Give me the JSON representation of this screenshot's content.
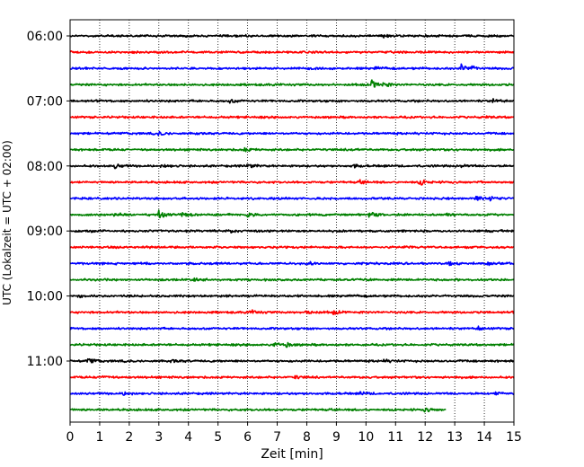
{
  "chart_data": {
    "type": "line",
    "subtype": "helicorder",
    "xlabel": "Zeit  [min]",
    "ylabel": "UTC (Lokalzeit = UTC + 02:00)",
    "xlim": [
      0,
      15
    ],
    "x_ticks": [
      "0",
      "1",
      "2",
      "3",
      "4",
      "5",
      "6",
      "7",
      "8",
      "9",
      "10",
      "11",
      "12",
      "13",
      "14",
      "15"
    ],
    "grid": "vertical dotted at each minute",
    "trace_interval_min": 15,
    "trace_colors": [
      "#000000",
      "#ff0000",
      "#0000ff",
      "#008000"
    ],
    "y_ticks": [
      {
        "label": "06:00",
        "trace": 0
      },
      {
        "label": "07:00",
        "trace": 4
      },
      {
        "label": "08:00",
        "trace": 8
      },
      {
        "label": "09:00",
        "trace": 12
      },
      {
        "label": "10:00",
        "trace": 16
      },
      {
        "label": "11:00",
        "trace": 20
      }
    ],
    "traces": [
      {
        "start": "06:00",
        "events": [
          {
            "t": 10.6,
            "amp": 0.3
          }
        ]
      },
      {
        "start": "06:15",
        "events": []
      },
      {
        "start": "06:30",
        "events": [
          {
            "t": 0.2,
            "amp": 0.3
          },
          {
            "t": 10.3,
            "amp": 0.3
          },
          {
            "t": 13.2,
            "amp": 1.0
          },
          {
            "t": 13.5,
            "amp": 0.5
          }
        ]
      },
      {
        "start": "06:45",
        "events": [
          {
            "t": 10.2,
            "amp": 1.0
          },
          {
            "t": 10.6,
            "amp": 0.4
          }
        ]
      },
      {
        "start": "07:00",
        "events": [
          {
            "t": 5.4,
            "amp": 0.4
          },
          {
            "t": 14.3,
            "amp": 0.4
          }
        ]
      },
      {
        "start": "07:15",
        "events": [
          {
            "t": 14.0,
            "amp": 0.2
          }
        ]
      },
      {
        "start": "07:30",
        "events": [
          {
            "t": 3.0,
            "amp": 0.4
          },
          {
            "t": 4.3,
            "amp": 0.25
          }
        ]
      },
      {
        "start": "07:45",
        "events": [
          {
            "t": 5.9,
            "amp": 0.35
          },
          {
            "t": 9.5,
            "amp": 0.2
          }
        ]
      },
      {
        "start": "08:00",
        "events": [
          {
            "t": 1.5,
            "amp": 0.5
          },
          {
            "t": 3.1,
            "amp": 0.45
          },
          {
            "t": 6.0,
            "amp": 0.5
          },
          {
            "t": 9.6,
            "amp": 0.3
          },
          {
            "t": 13.2,
            "amp": 0.3
          }
        ]
      },
      {
        "start": "08:15",
        "events": [
          {
            "t": 9.8,
            "amp": 0.35
          },
          {
            "t": 11.8,
            "amp": 0.7
          }
        ]
      },
      {
        "start": "08:30",
        "events": [
          {
            "t": 13.7,
            "amp": 0.5
          },
          {
            "t": 14.2,
            "amp": 0.45
          }
        ]
      },
      {
        "start": "08:45",
        "events": [
          {
            "t": 1.5,
            "amp": 0.5
          },
          {
            "t": 3.0,
            "amp": 0.9
          },
          {
            "t": 3.8,
            "amp": 0.6
          },
          {
            "t": 6.0,
            "amp": 0.5
          },
          {
            "t": 10.1,
            "amp": 0.7
          },
          {
            "t": 12.7,
            "amp": 0.35
          }
        ]
      },
      {
        "start": "09:00",
        "events": [
          {
            "t": 0.6,
            "amp": 0.45
          },
          {
            "t": 5.4,
            "amp": 0.4
          }
        ]
      },
      {
        "start": "09:15",
        "events": [
          {
            "t": 11.3,
            "amp": 0.25
          }
        ]
      },
      {
        "start": "09:30",
        "events": [
          {
            "t": 4.8,
            "amp": 0.3
          },
          {
            "t": 8.1,
            "amp": 0.3
          },
          {
            "t": 12.8,
            "amp": 0.35
          },
          {
            "t": 14.1,
            "amp": 0.35
          }
        ]
      },
      {
        "start": "09:45",
        "events": [
          {
            "t": 4.2,
            "amp": 0.3
          }
        ]
      },
      {
        "start": "10:00",
        "events": [
          {
            "t": 0.3,
            "amp": 0.2
          }
        ]
      },
      {
        "start": "10:15",
        "events": [
          {
            "t": 6.1,
            "amp": 0.45
          },
          {
            "t": 8.0,
            "amp": 0.5
          },
          {
            "t": 8.9,
            "amp": 0.35
          }
        ]
      },
      {
        "start": "10:30",
        "events": [
          {
            "t": 13.8,
            "amp": 0.45
          }
        ]
      },
      {
        "start": "10:45",
        "events": [
          {
            "t": 6.9,
            "amp": 0.6
          },
          {
            "t": 7.3,
            "amp": 0.4
          }
        ]
      },
      {
        "start": "11:00",
        "events": [
          {
            "t": 0.6,
            "amp": 0.6
          },
          {
            "t": 3.4,
            "amp": 0.45
          },
          {
            "t": 10.6,
            "amp": 0.3
          }
        ]
      },
      {
        "start": "11:15",
        "events": [
          {
            "t": 1.1,
            "amp": 0.4
          },
          {
            "t": 7.6,
            "amp": 0.35
          }
        ]
      },
      {
        "start": "11:30",
        "events": [
          {
            "t": 1.8,
            "amp": 0.35
          },
          {
            "t": 9.8,
            "amp": 0.35
          },
          {
            "t": 14.4,
            "amp": 0.3
          }
        ]
      },
      {
        "start": "11:45",
        "events": [
          {
            "t": 12.0,
            "amp": 0.45
          }
        ],
        "end_min": 12.7
      }
    ]
  }
}
